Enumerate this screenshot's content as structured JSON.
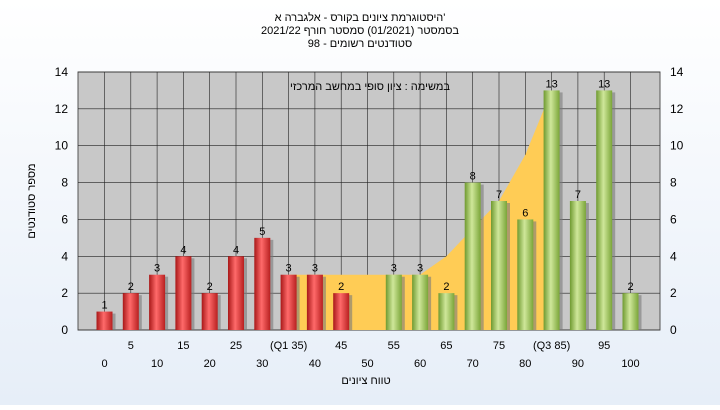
{
  "chart_data": {
    "type": "bar",
    "title_lines": [
      "היסטוגרמת ציונים בקורס - אלגברה א'",
      "בסמסטר  (01/2021)  סמסטר חורף  2021/22",
      "סטודנטים רשומים - 98"
    ],
    "annotation": "במשימה : ציון סופי במחשב המרכזי",
    "xlabel": "טווח ציונים",
    "ylabel": "מספר סטודנטים",
    "ylim": [
      0,
      14
    ],
    "yticks": [
      0,
      2,
      4,
      6,
      8,
      10,
      12,
      14
    ],
    "grid": true,
    "categories": [
      "0",
      "5",
      "10",
      "15",
      "20",
      "25",
      "30",
      "(Q1 35)",
      "40",
      "45",
      "50",
      "55",
      "60",
      "65",
      "70",
      "75",
      "80",
      "(Q3 85)",
      "90",
      "95",
      "100"
    ],
    "values": [
      1,
      2,
      3,
      4,
      2,
      4,
      5,
      3,
      3,
      2,
      0,
      3,
      3,
      2,
      8,
      7,
      6,
      13,
      7,
      13,
      2
    ],
    "bar_groups": [
      "red",
      "red",
      "red",
      "red",
      "red",
      "red",
      "red",
      "red",
      "red",
      "red",
      "red",
      "green",
      "green",
      "green",
      "green",
      "green",
      "green",
      "green",
      "green",
      "green",
      "green"
    ],
    "area_band": {
      "lower": [
        null,
        null,
        null,
        null,
        null,
        null,
        null,
        0,
        0,
        0,
        0,
        0,
        0,
        0,
        0,
        0,
        0,
        0,
        null,
        null,
        null
      ],
      "upper": [
        null,
        null,
        null,
        null,
        null,
        null,
        null,
        3,
        3,
        3,
        3,
        3,
        3,
        4,
        5.5,
        7,
        9.5,
        13,
        null,
        null,
        null
      ]
    },
    "colors": {
      "red": "#e63434",
      "green": "#9cc25a",
      "area": "#ffcc55",
      "plot_bg": "#c8c8c8"
    }
  }
}
